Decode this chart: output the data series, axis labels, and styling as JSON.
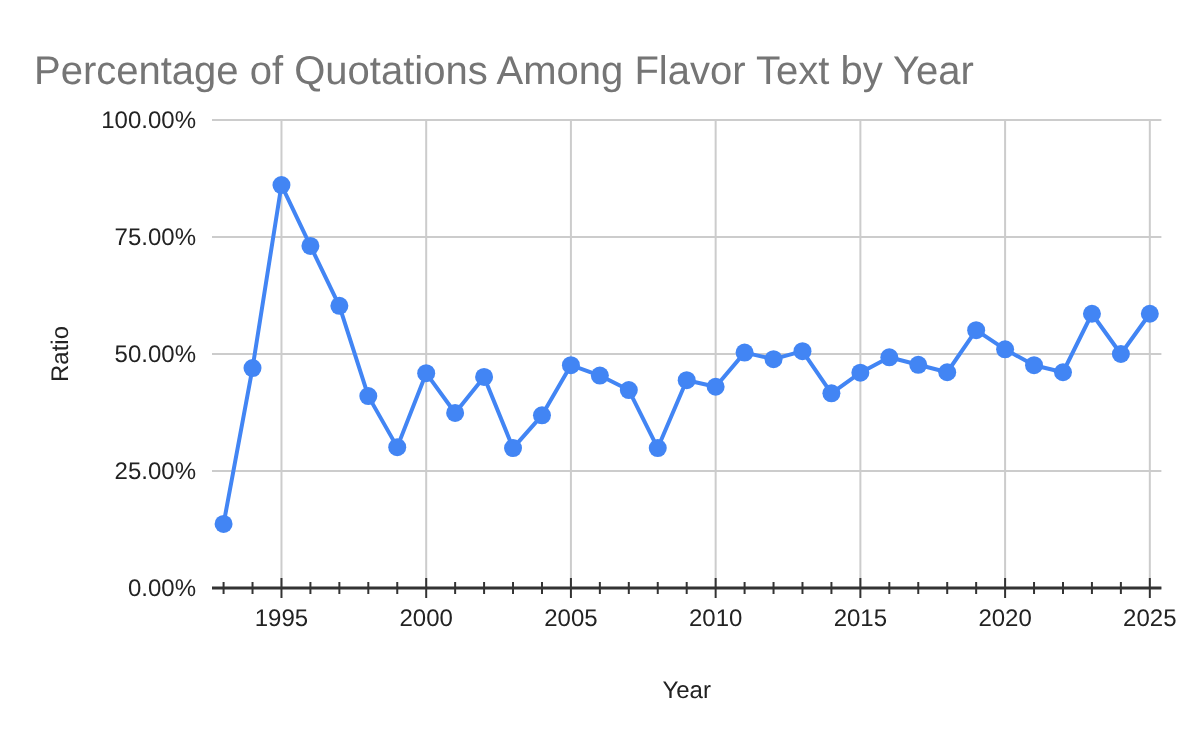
{
  "chart_data": {
    "type": "line",
    "title": "Percentage of Quotations Among Flavor Text by Year",
    "xlabel": "Year",
    "ylabel": "Ratio",
    "x": [
      1993,
      1994,
      1995,
      1996,
      1997,
      1998,
      1999,
      2000,
      2001,
      2002,
      2003,
      2004,
      2005,
      2006,
      2007,
      2008,
      2009,
      2010,
      2011,
      2012,
      2013,
      2014,
      2015,
      2016,
      2017,
      2018,
      2019,
      2020,
      2021,
      2022,
      2023,
      2024,
      2025
    ],
    "series": [
      {
        "color": "#4285f4",
        "values": [
          0.137,
          0.47,
          0.861,
          0.731,
          0.603,
          0.41,
          0.301,
          0.459,
          0.374,
          0.451,
          0.299,
          0.369,
          0.476,
          0.454,
          0.423,
          0.299,
          0.444,
          0.43,
          0.503,
          0.489,
          0.506,
          0.416,
          0.46,
          0.493,
          0.477,
          0.461,
          0.551,
          0.51,
          0.476,
          0.461,
          0.586,
          0.5,
          0.586
        ]
      }
    ],
    "xlim": [
      1992.6,
      2025.4
    ],
    "xticks": [
      {
        "value": 1993,
        "label": null
      },
      {
        "value": 1994,
        "label": null
      },
      1995,
      {
        "value": 1996,
        "label": null
      },
      {
        "value": 1997,
        "label": null
      },
      {
        "value": 1998,
        "label": null
      },
      {
        "value": 1999,
        "label": null
      },
      2000,
      {
        "value": 2001,
        "label": null
      },
      {
        "value": 2002,
        "label": null
      },
      {
        "value": 2003,
        "label": null
      },
      {
        "value": 2004,
        "label": null
      },
      2005,
      {
        "value": 2006,
        "label": null
      },
      {
        "value": 2007,
        "label": null
      },
      {
        "value": 2008,
        "label": null
      },
      {
        "value": 2009,
        "label": null
      },
      2010,
      {
        "value": 2011,
        "label": null
      },
      {
        "value": 2012,
        "label": null
      },
      {
        "value": 2013,
        "label": null
      },
      {
        "value": 2014,
        "label": null
      },
      2015,
      {
        "value": 2016,
        "label": null
      },
      {
        "value": 2017,
        "label": null
      },
      {
        "value": 2018,
        "label": null
      },
      {
        "value": 2019,
        "label": null
      },
      2020,
      {
        "value": 2021,
        "label": null
      },
      {
        "value": 2022,
        "label": null
      },
      {
        "value": 2023,
        "label": null
      },
      {
        "value": 2024,
        "label": null
      },
      2025
    ],
    "ylim": [
      0,
      1
    ],
    "yticks": [
      {
        "value": 0,
        "label": "0.00%"
      },
      {
        "value": 0.25,
        "label": "25.00%"
      },
      {
        "value": 0.5,
        "label": "50.00%"
      },
      {
        "value": 0.75,
        "label": "75.00%"
      },
      {
        "value": 1,
        "label": "100.00%"
      }
    ],
    "grid": true,
    "marker": "circle",
    "line_style": "solid"
  }
}
